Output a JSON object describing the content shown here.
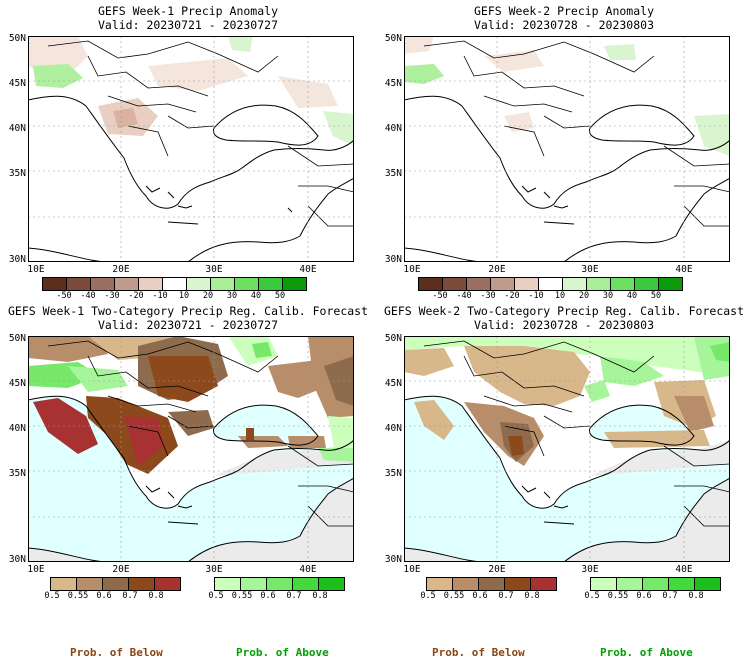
{
  "panels": [
    {
      "title": "GEFS Week-1 Precip Anomaly",
      "valid": "Valid: 20230721 - 20230727"
    },
    {
      "title": "GEFS Week-2 Precip Anomaly",
      "valid": "Valid: 20230728 - 20230803"
    },
    {
      "title": "GEFS Week-1 Two-Category Precip Reg. Calib. Forecast",
      "valid": "Valid: 20230721 - 20230727"
    },
    {
      "title": "GEFS Week-2 Two-Category Precip Reg. Calib. Forecast",
      "valid": "Valid: 20230728 - 20230803"
    }
  ],
  "map_axes": {
    "lat_labels": [
      "50N",
      "45N",
      "40N",
      "35N",
      "30N"
    ],
    "lon_labels": [
      "10E",
      "20E",
      "30E",
      "40E"
    ]
  },
  "anomaly_colorbar": {
    "labels": [
      "-50",
      "-40",
      "-30",
      "-20",
      "-10",
      "10",
      "20",
      "30",
      "40",
      "50"
    ],
    "colors": [
      "#5c2e1e",
      "#7a4a3a",
      "#9a6e60",
      "#c09a8c",
      "#e8cfc2",
      "#ffffff",
      "#d9f5d0",
      "#a8ee98",
      "#6ee060",
      "#3cc83c",
      "#0a9a0a"
    ]
  },
  "prob_colorbar": {
    "below_labels": [
      "0.5",
      "0.55",
      "0.6",
      "0.7",
      "0.8"
    ],
    "above_labels": [
      "0.5",
      "0.55",
      "0.6",
      "0.7",
      "0.8"
    ],
    "below_colors": [
      "#d8b88a",
      "#b88e6a",
      "#8f6b4d",
      "#8c4a1c",
      "#a83232"
    ],
    "above_colors": [
      "#ccffbb",
      "#a6f59a",
      "#77e86a",
      "#44d93d",
      "#1cbf1c"
    ]
  },
  "footer": {
    "below": "Prob. of Below",
    "above": "Prob. of Above"
  },
  "colors": {
    "sea": "#e0ffff",
    "land_gray": "#ebebeb",
    "brown_label": "#8b4513",
    "green_label": "#00a000"
  }
}
